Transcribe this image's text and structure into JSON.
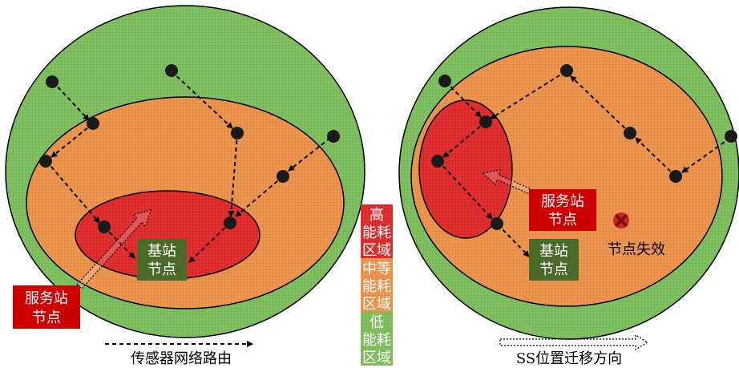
{
  "left_diagram": {
    "ss_label_line1": "服务站",
    "ss_label_line2": "节点",
    "bs_label_line1": "基站",
    "bs_label_line2": "节点"
  },
  "right_diagram": {
    "ss_label_line1": "服务站",
    "ss_label_line2": "节点",
    "bs_label_line1": "基站",
    "bs_label_line2": "节点",
    "failed_node_label": "节点失效"
  },
  "legend": {
    "high": [
      "高",
      "能耗",
      "区域"
    ],
    "mid": [
      "中等",
      "能耗",
      "区域"
    ],
    "low": [
      "低",
      "能耗",
      "区域"
    ],
    "routing_label": "传感器网络路由",
    "migration_label": "SS位置迁移方向"
  },
  "colors": {
    "low_zone": "#7fbf5c",
    "mid_zone": "#e8914a",
    "high_zone": "#e02a2a",
    "base_station": "#4b6a2a",
    "service_station": "#cc0000"
  }
}
